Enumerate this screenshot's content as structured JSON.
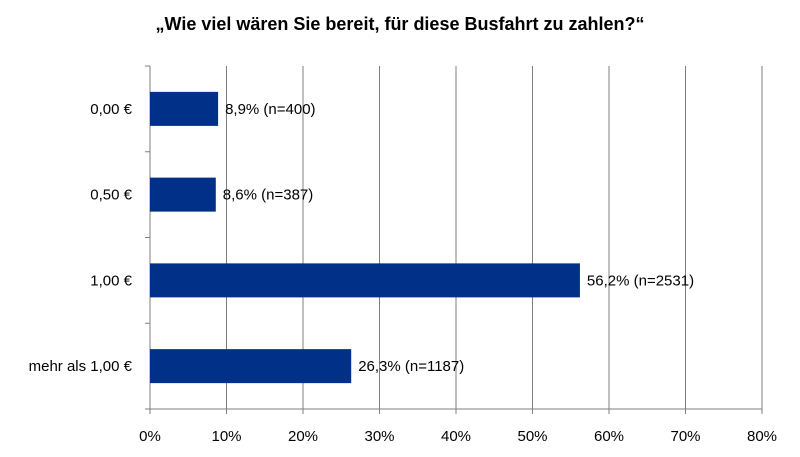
{
  "chart_data": {
    "type": "bar",
    "orientation": "horizontal",
    "title": "„Wie viel wären Sie bereit, für diese Busfahrt zu zahlen?“",
    "xlabel": "",
    "ylabel": "",
    "categories": [
      "0,00 €",
      "0,50 €",
      "1,00 €",
      "mehr als 1,00 €"
    ],
    "values": [
      8.9,
      8.6,
      56.2,
      26.3
    ],
    "data_labels": [
      "8,9% (n=400)",
      "8,6% (n=387)",
      "56,2% (n=2531)",
      "26,3% (n=1187)"
    ],
    "xlim": [
      0,
      80
    ],
    "xticks": [
      0,
      10,
      20,
      30,
      40,
      50,
      60,
      70,
      80
    ],
    "xtick_labels": [
      "0%",
      "10%",
      "20%",
      "30%",
      "40%",
      "50%",
      "60%",
      "70%",
      "80%"
    ],
    "grid": "vertical",
    "legend": "none",
    "bar_color": "#003087",
    "grid_color": "#7f7f7f"
  }
}
